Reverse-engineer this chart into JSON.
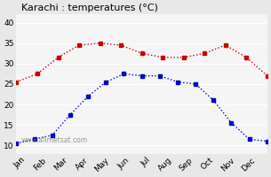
{
  "title": "Karachi : temperatures (°C)",
  "months": [
    "Jan",
    "Feb",
    "Mar",
    "Apr",
    "May",
    "Jun",
    "Jul",
    "Aug",
    "Sep",
    "Oct",
    "Nov",
    "Dec"
  ],
  "max_temps": [
    25.5,
    27.5,
    31.5,
    34.5,
    35.0,
    34.5,
    32.5,
    31.5,
    31.5,
    32.5,
    34.5,
    31.5,
    27.0
  ],
  "min_temps": [
    10.5,
    11.5,
    12.5,
    17.5,
    22.0,
    25.5,
    27.5,
    27.0,
    27.0,
    25.5,
    25.0,
    21.0,
    15.5,
    11.5,
    11.0
  ],
  "max_x": [
    0,
    1,
    2,
    3,
    4,
    5,
    6,
    7,
    8,
    9,
    10,
    11,
    12
  ],
  "min_x": [
    0,
    1,
    2,
    3,
    4,
    5,
    6,
    7,
    8,
    9,
    10,
    11,
    12,
    13,
    14
  ],
  "red_color": "#cc0000",
  "blue_color": "#0000cc",
  "background_color": "#e8e8e8",
  "plot_bg_color": "#f5f5f5",
  "ylim": [
    8,
    42
  ],
  "yticks": [
    10,
    15,
    20,
    25,
    30,
    35,
    40
  ],
  "watermark": "www.allmetsat.com"
}
